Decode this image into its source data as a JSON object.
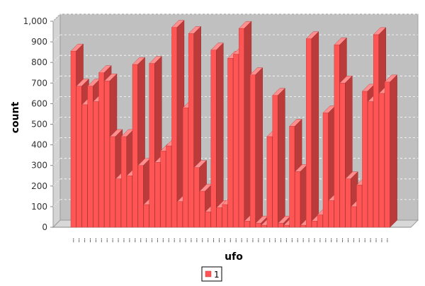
{
  "chart_data": {
    "type": "bar",
    "style": "3d",
    "xlabel": "ufo",
    "ylabel": "count",
    "ylim": [
      0,
      1000
    ],
    "yticks": [
      0,
      100,
      200,
      300,
      400,
      500,
      600,
      700,
      800,
      900,
      1000
    ],
    "ytick_labels": [
      "0",
      "100",
      "200",
      "300",
      "400",
      "500",
      "600",
      "700",
      "800",
      "900",
      "1,000"
    ],
    "grid": true,
    "legend_position": "bottom",
    "series": [
      {
        "name": "1",
        "color": "#ff5555",
        "values": [
          855,
          685,
          595,
          685,
          610,
          750,
          710,
          440,
          235,
          440,
          250,
          790,
          300,
          110,
          795,
          315,
          370,
          395,
          970,
          125,
          580,
          940,
          290,
          175,
          75,
          860,
          95,
          110,
          820,
          840,
          965,
          30,
          740,
          20,
          10,
          440,
          640,
          20,
          10,
          490,
          270,
          10,
          915,
          30,
          60,
          555,
          130,
          885,
          700,
          235,
          100,
          205,
          660,
          610,
          935,
          650,
          705
        ]
      }
    ]
  },
  "legend": {
    "items": [
      {
        "label": "1",
        "color": "#ff5555"
      }
    ]
  },
  "theme": {
    "plot_background": "#c0c0c0",
    "bar_color": "#ff5555",
    "bar_top_color": "#ff8f8f",
    "bar_side_color": "#bb3a3a"
  }
}
